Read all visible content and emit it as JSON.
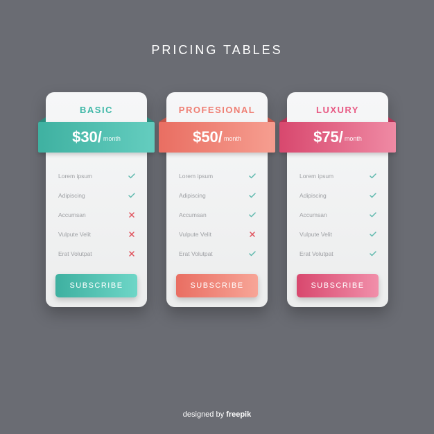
{
  "page": {
    "title": "Pricing Tables",
    "background_color": "#6a6c73",
    "title_color": "#ffffff",
    "title_fontsize": 18,
    "title_letter_spacing": 3
  },
  "check_color": "#5fb9ae",
  "cross_color": "#e0525d",
  "feature_text_color": "#9d9fa3",
  "plans": [
    {
      "name": "Basic",
      "name_color": "#40b8a8",
      "price": "$30/",
      "period": "month",
      "banner_gradient_from": "#3fb1a1",
      "banner_gradient_to": "#64cdbf",
      "banner_fold": "#2c8b7d",
      "button_gradient_from": "#3eb0a0",
      "button_gradient_to": "#6ed6c7",
      "button_label": "Subscribe",
      "features": [
        {
          "label": "Lorem ipsum",
          "included": true
        },
        {
          "label": "Adipiscing",
          "included": true
        },
        {
          "label": "Accumsan",
          "included": false
        },
        {
          "label": "Vulpute Velit",
          "included": false
        },
        {
          "label": "Erat Volutpat",
          "included": false
        }
      ]
    },
    {
      "name": "Profesional",
      "name_color": "#ef7f74",
      "price": "$50/",
      "period": "month",
      "banner_gradient_from": "#e96e62",
      "banner_gradient_to": "#f69e90",
      "banner_fold": "#c1564b",
      "button_gradient_from": "#e96e62",
      "button_gradient_to": "#f7a597",
      "button_label": "Subscribe",
      "features": [
        {
          "label": "Lorem ipsum",
          "included": true
        },
        {
          "label": "Adipiscing",
          "included": true
        },
        {
          "label": "Accumsan",
          "included": true
        },
        {
          "label": "Vulpute Velit",
          "included": false
        },
        {
          "label": "Erat Volutpat",
          "included": true
        }
      ]
    },
    {
      "name": "Luxury",
      "name_color": "#e85a84",
      "price": "$75/",
      "period": "month",
      "banner_gradient_from": "#d8486e",
      "banner_gradient_to": "#ef8aa4",
      "banner_fold": "#b23456",
      "button_gradient_from": "#d8486e",
      "button_gradient_to": "#f18faa",
      "button_label": "Subscribe",
      "features": [
        {
          "label": "Lorem ipsum",
          "included": true
        },
        {
          "label": "Adipiscing",
          "included": true
        },
        {
          "label": "Accumsan",
          "included": true
        },
        {
          "label": "Vulpute Velit",
          "included": true
        },
        {
          "label": "Erat Volutpat",
          "included": true
        }
      ]
    }
  ],
  "attribution": {
    "prefix": "designed by ",
    "brand": "freepik",
    "brand_color": "#ffffff"
  }
}
